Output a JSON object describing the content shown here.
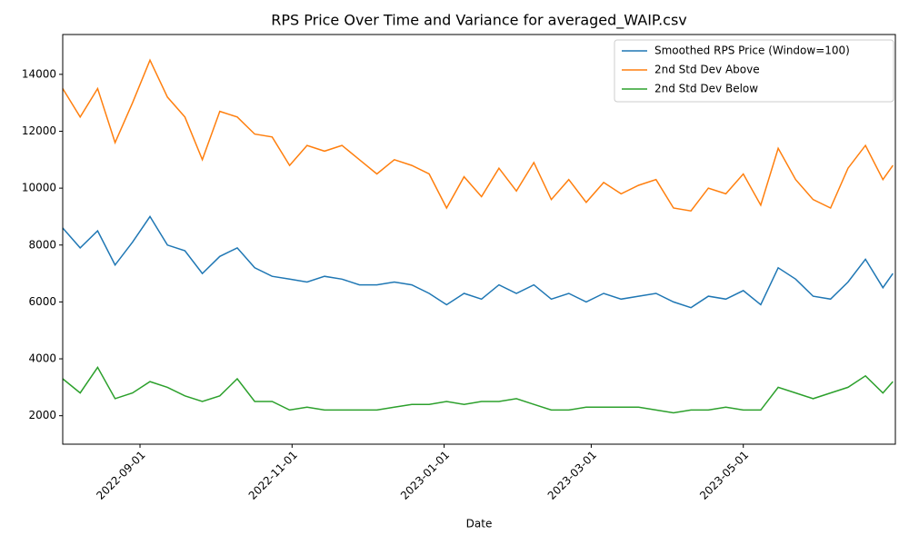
{
  "chart_data": {
    "type": "line",
    "title": "RPS Price Over Time and Variance for averaged_WAIP.csv",
    "x_label": "Date",
    "x": [
      "2022-08-01",
      "2022-08-08",
      "2022-08-15",
      "2022-08-22",
      "2022-08-29",
      "2022-09-05",
      "2022-09-12",
      "2022-09-19",
      "2022-09-26",
      "2022-10-03",
      "2022-10-10",
      "2022-10-17",
      "2022-10-24",
      "2022-10-31",
      "2022-11-07",
      "2022-11-14",
      "2022-11-21",
      "2022-11-28",
      "2022-12-05",
      "2022-12-12",
      "2022-12-19",
      "2022-12-26",
      "2023-01-02",
      "2023-01-09",
      "2023-01-16",
      "2023-01-23",
      "2023-01-30",
      "2023-02-06",
      "2023-02-13",
      "2023-02-20",
      "2023-02-27",
      "2023-03-06",
      "2023-03-13",
      "2023-03-20",
      "2023-03-27",
      "2023-04-03",
      "2023-04-10",
      "2023-04-17",
      "2023-04-24",
      "2023-05-01",
      "2023-05-08",
      "2023-05-15",
      "2023-05-22",
      "2023-05-29",
      "2023-06-05",
      "2023-06-12",
      "2023-06-19",
      "2023-06-26",
      "2023-06-30"
    ],
    "series": [
      {
        "name": "Smoothed RPS Price (Window=100)",
        "color": "#1f77b4",
        "values": [
          8600,
          7900,
          8500,
          7300,
          8100,
          9000,
          8000,
          7800,
          7000,
          7600,
          7900,
          7200,
          6900,
          6800,
          6700,
          6900,
          6800,
          6600,
          6600,
          6700,
          6600,
          6300,
          5900,
          6300,
          6100,
          6600,
          6300,
          6600,
          6100,
          6300,
          6000,
          6300,
          6100,
          6200,
          6300,
          6000,
          5800,
          6200,
          6100,
          6400,
          5900,
          7200,
          6800,
          6200,
          6100,
          6700,
          7500,
          6500,
          7000
        ]
      },
      {
        "name": "2nd Std Dev Above",
        "color": "#ff7f0e",
        "values": [
          13500,
          12500,
          13500,
          11600,
          13000,
          14500,
          13200,
          12500,
          11000,
          12700,
          12500,
          11900,
          11800,
          10800,
          11500,
          11300,
          11500,
          11000,
          10500,
          11000,
          10800,
          10500,
          9300,
          10400,
          9700,
          10700,
          9900,
          10900,
          9600,
          10300,
          9500,
          10200,
          9800,
          10100,
          10300,
          9300,
          9200,
          10000,
          9800,
          10500,
          9400,
          11400,
          10300,
          9600,
          9300,
          10700,
          11500,
          10300,
          10800
        ]
      },
      {
        "name": "2nd Std Dev Below",
        "color": "#2ca02c",
        "values": [
          3300,
          2800,
          3700,
          2600,
          2800,
          3200,
          3000,
          2700,
          2500,
          2700,
          3300,
          2500,
          2500,
          2200,
          2300,
          2200,
          2200,
          2200,
          2200,
          2300,
          2400,
          2400,
          2500,
          2400,
          2500,
          2500,
          2600,
          2400,
          2200,
          2200,
          2300,
          2300,
          2300,
          2300,
          2200,
          2100,
          2200,
          2200,
          2300,
          2200,
          2200,
          3000,
          2800,
          2600,
          2800,
          3000,
          3400,
          2800,
          3200
        ]
      }
    ],
    "xlim": [
      "2022-08-01",
      "2023-07-01"
    ],
    "xticks": [
      "2022-09-01",
      "2022-11-01",
      "2023-01-01",
      "2023-03-01",
      "2023-05-01"
    ],
    "ylim": [
      1000,
      15400
    ],
    "yticks": [
      2000,
      4000,
      6000,
      8000,
      10000,
      12000,
      14000
    ],
    "grid": false,
    "legend": "upper right"
  }
}
